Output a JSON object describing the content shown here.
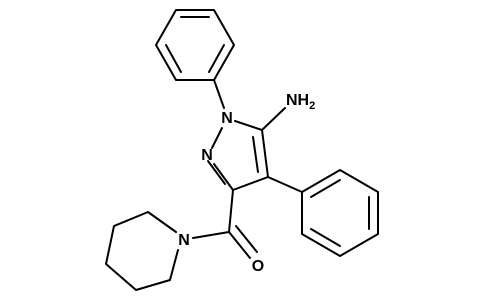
{
  "atoms": [
    {
      "label": "N"
    },
    {
      "label": "N"
    },
    {
      "label": "NH",
      "subscript": "2"
    },
    {
      "label": "N"
    },
    {
      "label": "O"
    }
  ]
}
